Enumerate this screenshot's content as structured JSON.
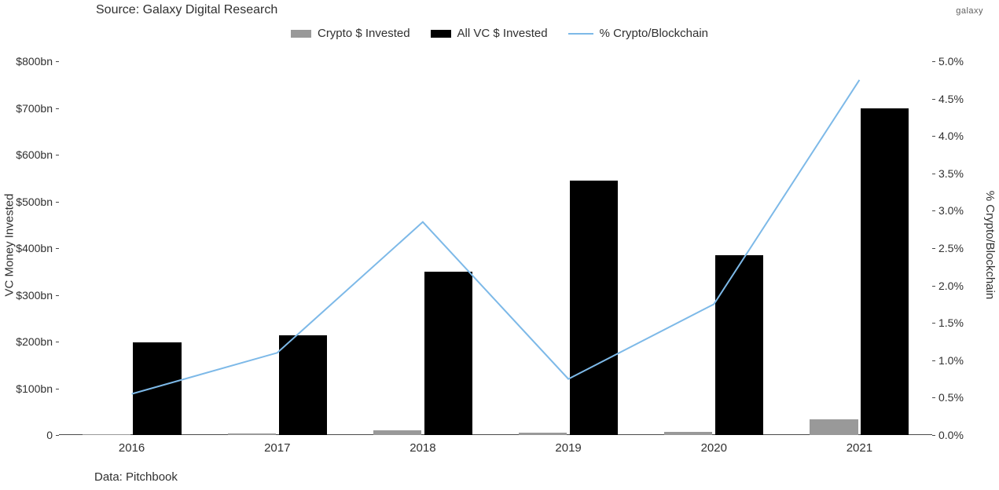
{
  "meta": {
    "source_label": "Source: Galaxy Digital Research",
    "data_label": "Data: Pitchbook",
    "brand": "galaxy"
  },
  "legend": {
    "crypto": {
      "label": "Crypto $ Invested",
      "color": "#999999"
    },
    "allvc": {
      "label": "All VC $ Invested",
      "color": "#000000"
    },
    "pct": {
      "label": "% Crypto/Blockchain",
      "color": "#7db9e8"
    }
  },
  "chart": {
    "type": "bar+line",
    "background_color": "#ffffff",
    "text_color": "#303030",
    "axis_color": "#4a4a4a",
    "font_size_axis": 14,
    "font_size_legend": 15,
    "categories": [
      "2016",
      "2017",
      "2018",
      "2019",
      "2020",
      "2021"
    ],
    "left_axis": {
      "title": "VC Money Invested",
      "min": 0,
      "max": 800,
      "tick_step": 100,
      "tick_labels": [
        "0",
        "$100bn",
        "$200bn",
        "$300bn",
        "$400bn",
        "$500bn",
        "$600bn",
        "$700bn",
        "$800bn"
      ]
    },
    "right_axis": {
      "title": "% Crypto/Blockchain",
      "min": 0.0,
      "max": 5.0,
      "tick_step": 0.5,
      "tick_labels": [
        "0.0%",
        "0.5%",
        "1.0%",
        "1.5%",
        "2.0%",
        "2.5%",
        "3.0%",
        "3.5%",
        "4.0%",
        "4.5%",
        "5.0%"
      ]
    },
    "series": {
      "crypto_invested": {
        "axis": "left",
        "color": "#999999",
        "bar_width_frac": 0.33,
        "values": [
          1,
          3,
          10,
          5,
          7,
          33
        ]
      },
      "allvc_invested": {
        "axis": "left",
        "color": "#000000",
        "bar_width_frac": 0.33,
        "values": [
          198,
          213,
          350,
          545,
          385,
          700
        ]
      },
      "pct_crypto": {
        "axis": "right",
        "color": "#7db9e8",
        "line_width": 2,
        "values": [
          0.55,
          1.1,
          2.85,
          0.75,
          1.75,
          4.75
        ]
      }
    }
  }
}
